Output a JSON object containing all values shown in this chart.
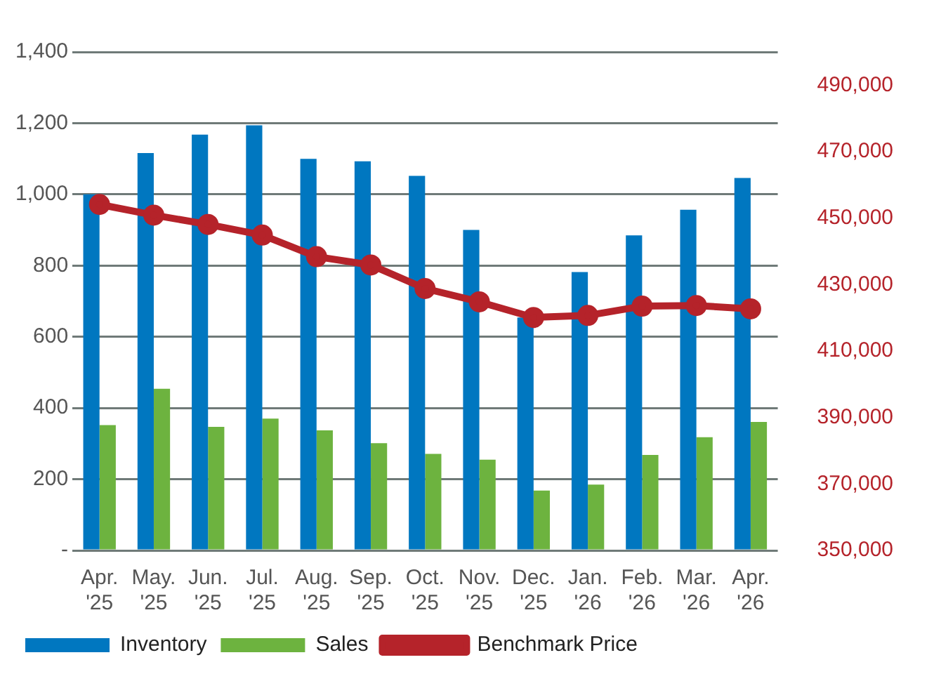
{
  "chart_data": {
    "type": "bar",
    "categories": [
      "Apr. '25",
      "May. '25",
      "Jun. '25",
      "Jul. '25",
      "Aug. '25",
      "Sep. '25",
      "Oct. '25",
      "Nov. '25",
      "Dec. '25",
      "Jan. '26",
      "Feb. '26",
      "Mar. '26",
      "Apr. '26"
    ],
    "series": [
      {
        "name": "Inventory",
        "color": "#0077c0",
        "values": [
          1000,
          1116,
          1168,
          1194,
          1100,
          1093,
          1052,
          900,
          654,
          782,
          885,
          957,
          1046
        ]
      },
      {
        "name": "Sales",
        "color": "#6db33f",
        "values": [
          352,
          454,
          347,
          370,
          337,
          301,
          271,
          255,
          168,
          185,
          268,
          318,
          361
        ]
      },
      {
        "name": "Benchmark Price",
        "type": "line",
        "axis": "y2",
        "color": "#b5232a",
        "marker": "circle",
        "values": [
          454100,
          450900,
          448100,
          444900,
          438400,
          435900,
          428800,
          424800,
          420100,
          420700,
          423500,
          423700,
          422700
        ]
      }
    ],
    "ylim": [
      0,
      1400
    ],
    "yticks": [
      {
        "value": 0,
        "label": "-"
      },
      200,
      400,
      600,
      800,
      {
        "value": 1000,
        "label": "1,000"
      },
      {
        "value": 1200,
        "label": "1,200"
      },
      {
        "value": 1400,
        "label": "1,400"
      }
    ],
    "y2lim": [
      350000,
      500000
    ],
    "y2ticks": [
      {
        "value": 350000,
        "label": "350,000"
      },
      {
        "value": 370000,
        "label": "370,000"
      },
      {
        "value": 390000,
        "label": "390,000"
      },
      {
        "value": 410000,
        "label": "410,000"
      },
      {
        "value": 430000,
        "label": "430,000"
      },
      {
        "value": 450000,
        "label": "450,000"
      },
      {
        "value": 470000,
        "label": "470,000"
      },
      {
        "value": 490000,
        "label": "490,000"
      }
    ],
    "grid": "y",
    "legend": "bottom"
  }
}
